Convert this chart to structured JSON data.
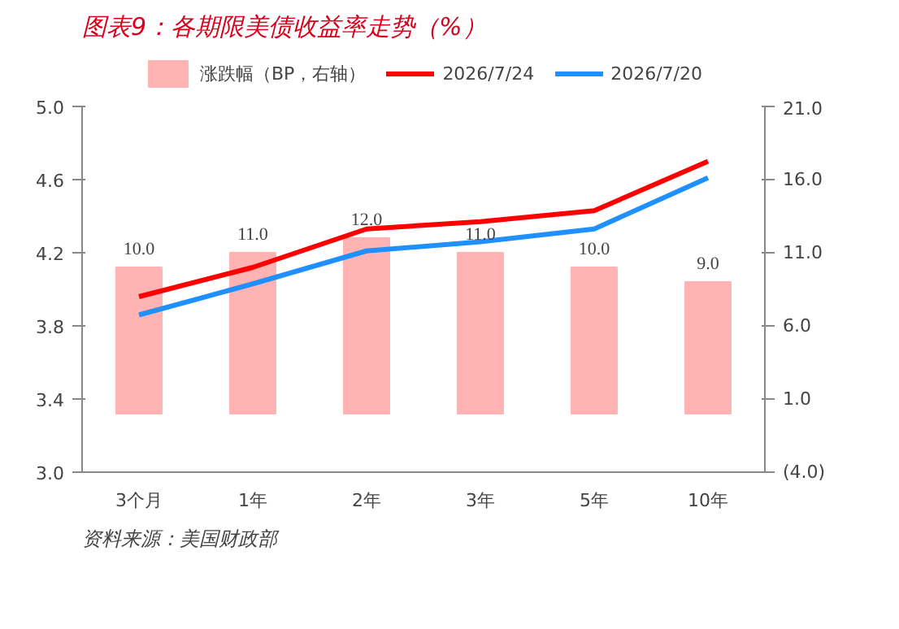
{
  "chart_data": {
    "type": "line",
    "title": "图表9：各期限美债收益率走势（%）",
    "categories": [
      "3个月",
      "1年",
      "2年",
      "3年",
      "5年",
      "10年"
    ],
    "series": [
      {
        "name": "涨跌幅（BP，右轴）",
        "type": "bar",
        "axis": "y2",
        "color": "#ffb3b3",
        "values": [
          10.0,
          11.0,
          12.0,
          11.0,
          10.0,
          9.0
        ],
        "value_labels": [
          "10.0",
          "11.0",
          "12.0",
          "11.0",
          "10.0",
          "9.0"
        ]
      },
      {
        "name": "2026/7/24",
        "color": "#ff0000",
        "values": [
          3.96,
          4.12,
          4.33,
          4.37,
          4.43,
          4.7
        ]
      },
      {
        "name": "2026/7/20",
        "color": "#1e90ff",
        "values": [
          3.86,
          4.03,
          4.21,
          4.26,
          4.33,
          4.61
        ]
      }
    ],
    "ylim": [
      3.0,
      5.0
    ],
    "yticks": [
      {
        "value": 3.0,
        "label": "3.0"
      },
      3.4,
      3.8,
      4.2,
      4.6,
      {
        "value": 5.0,
        "label": "5.0"
      }
    ],
    "y2lim": [
      -4,
      21
    ],
    "y2ticks": [
      {
        "value": -4,
        "label": "(4.0)"
      },
      {
        "value": 1,
        "label": "1.0"
      },
      {
        "value": 6,
        "label": "6.0"
      },
      {
        "value": 11,
        "label": "11.0"
      },
      {
        "value": 16,
        "label": "16.0"
      },
      {
        "value": 21,
        "label": "21.0"
      }
    ],
    "grid": false,
    "legend": "top",
    "marker": "none",
    "line_style": "solid",
    "annotations": [
      "资料来源：美国财政部"
    ]
  }
}
